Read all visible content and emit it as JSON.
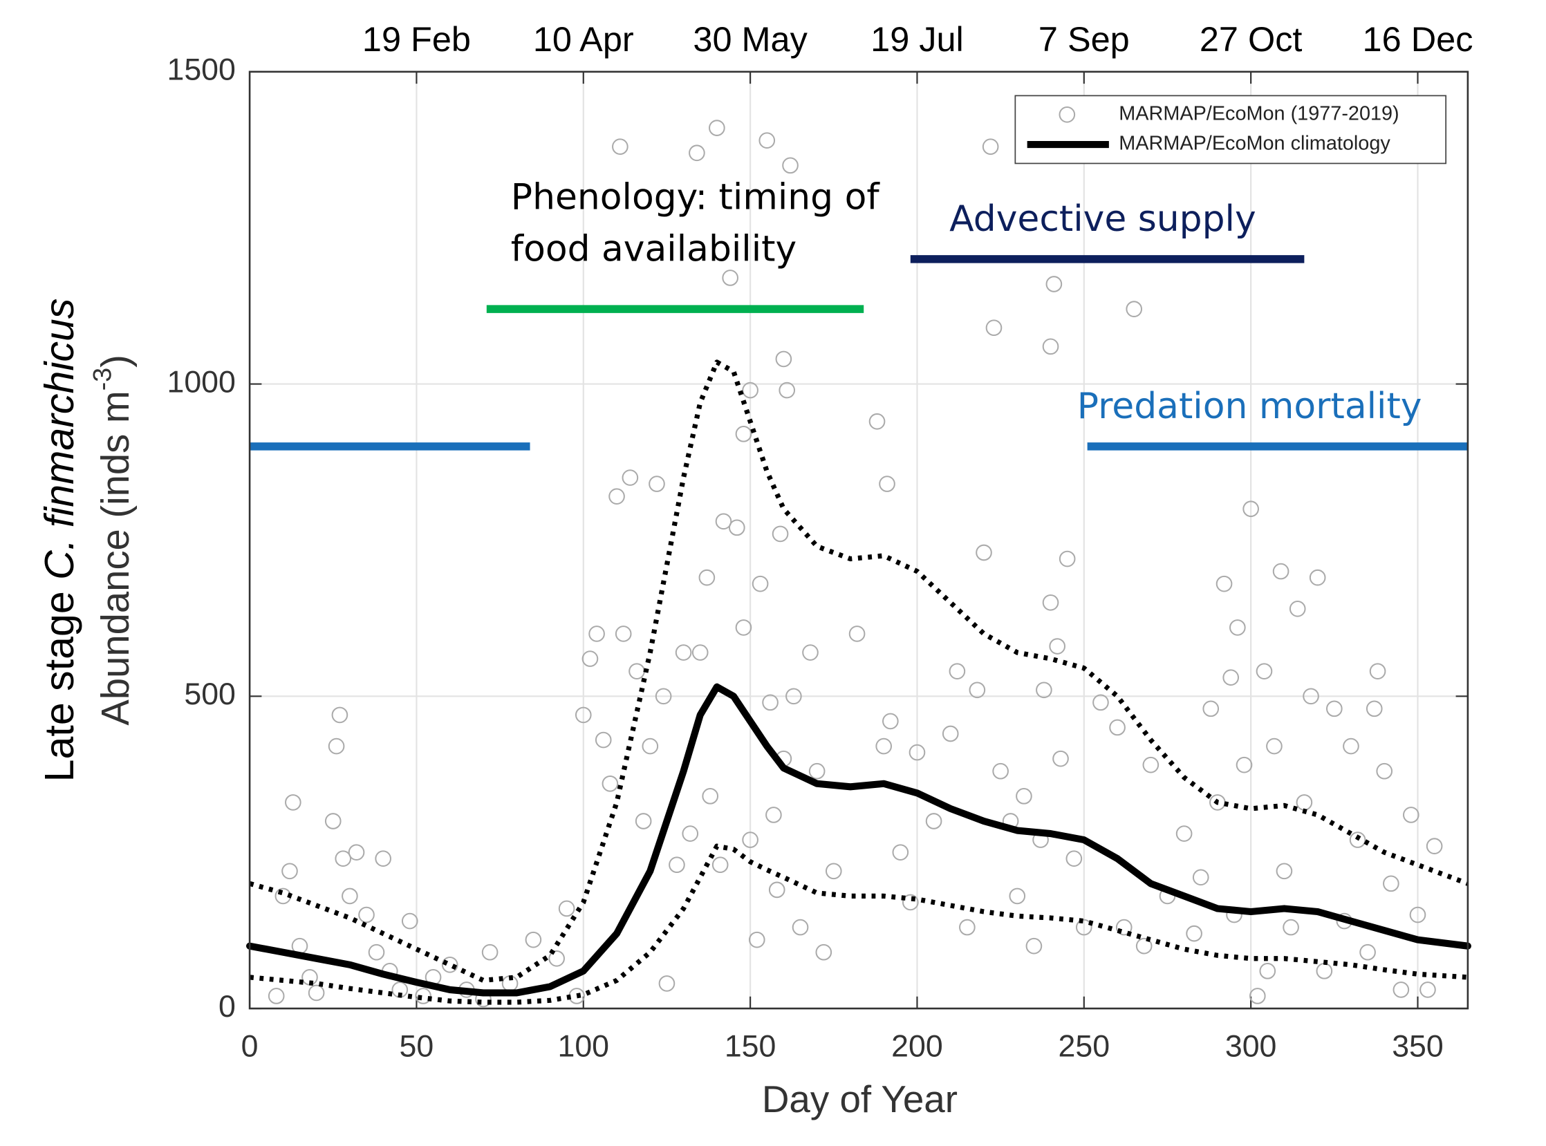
{
  "chart_data": {
    "type": "scatter",
    "xlabel": "Day of Year",
    "ylabel_lines": [
      [
        "Late stage ",
        "C. finmarchicus"
      ],
      [
        "Abundance (inds m",
        "-3",
        ")"
      ]
    ],
    "xlim": [
      0,
      365
    ],
    "ylim": [
      0,
      1500
    ],
    "xticks": [
      0,
      50,
      100,
      150,
      200,
      250,
      300,
      350
    ],
    "yticks": [
      0,
      500,
      1000,
      1500
    ],
    "x2ticks": [
      {
        "value": 50,
        "label": "19 Feb"
      },
      {
        "value": 100,
        "label": "10 Apr"
      },
      {
        "value": 150,
        "label": "30 May"
      },
      {
        "value": 200,
        "label": "19 Jul"
      },
      {
        "value": 250,
        "label": "7 Sep"
      },
      {
        "value": 300,
        "label": "27 Oct"
      },
      {
        "value": 350,
        "label": "16 Dec"
      }
    ],
    "grid": true,
    "legend": "upper right",
    "series": [
      {
        "name": "MARMAP/EcoMon (1977-2019)",
        "color": "#aaaaaa",
        "marker": "open-circle",
        "x": [
          8,
          10,
          12,
          13,
          15,
          18,
          20,
          25,
          26,
          27,
          28,
          30,
          32,
          35,
          38,
          40,
          42,
          45,
          48,
          52,
          55,
          60,
          65,
          70,
          72,
          78,
          85,
          92,
          95,
          98,
          100,
          102,
          104,
          106,
          108,
          110,
          111,
          112,
          114,
          116,
          118,
          120,
          122,
          124,
          125,
          128,
          130,
          132,
          134,
          135,
          137,
          138,
          140,
          141,
          142,
          144,
          146,
          148,
          148,
          150,
          150,
          152,
          153,
          155,
          156,
          157,
          158,
          159,
          160,
          160,
          161,
          162,
          163,
          165,
          168,
          170,
          172,
          175,
          182,
          188,
          190,
          191,
          192,
          195,
          198,
          200,
          205,
          210,
          212,
          215,
          218,
          220,
          222,
          223,
          225,
          228,
          230,
          232,
          235,
          237,
          238,
          240,
          240,
          241,
          242,
          243,
          245,
          247,
          250,
          255,
          260,
          262,
          265,
          268,
          270,
          275,
          280,
          283,
          285,
          288,
          290,
          292,
          294,
          295,
          296,
          298,
          300,
          302,
          304,
          305,
          307,
          309,
          310,
          312,
          314,
          316,
          318,
          320,
          322,
          325,
          328,
          330,
          332,
          335,
          337,
          338,
          340,
          342,
          345,
          348,
          350,
          353,
          355
        ],
        "values": [
          20,
          180,
          220,
          330,
          100,
          50,
          25,
          300,
          420,
          470,
          240,
          180,
          250,
          150,
          90,
          240,
          60,
          30,
          140,
          20,
          50,
          70,
          30,
          15,
          90,
          40,
          110,
          80,
          160,
          20,
          470,
          560,
          600,
          430,
          360,
          820,
          1380,
          600,
          850,
          540,
          300,
          420,
          840,
          500,
          40,
          230,
          570,
          280,
          1370,
          570,
          690,
          340,
          1410,
          230,
          780,
          1170,
          770,
          610,
          920,
          990,
          270,
          110,
          680,
          1390,
          490,
          310,
          190,
          760,
          1040,
          400,
          990,
          1350,
          500,
          130,
          570,
          380,
          90,
          220,
          600,
          940,
          420,
          840,
          460,
          250,
          170,
          410,
          300,
          440,
          540,
          130,
          510,
          730,
          1380,
          1090,
          380,
          300,
          180,
          340,
          100,
          270,
          510,
          1060,
          650,
          1160,
          580,
          400,
          720,
          240,
          130,
          490,
          450,
          130,
          1120,
          100,
          390,
          180,
          280,
          120,
          210,
          480,
          330,
          680,
          530,
          150,
          610,
          390,
          800,
          20,
          540,
          60,
          420,
          700,
          220,
          130,
          640,
          330,
          500,
          690,
          60,
          480,
          140,
          420,
          270,
          90,
          480,
          540,
          380,
          200,
          30,
          310,
          150,
          30,
          260
        ]
      },
      {
        "name": "MARMAP/EcoMon climatology",
        "color": "#000000",
        "line_style": "solid",
        "x": [
          0,
          10,
          20,
          30,
          40,
          50,
          60,
          70,
          80,
          90,
          100,
          110,
          120,
          130,
          135,
          140,
          145,
          150,
          155,
          160,
          170,
          180,
          190,
          200,
          210,
          220,
          230,
          240,
          250,
          260,
          270,
          280,
          290,
          300,
          310,
          320,
          330,
          340,
          350,
          365
        ],
        "values": [
          100,
          90,
          80,
          70,
          55,
          42,
          30,
          25,
          25,
          35,
          60,
          120,
          220,
          380,
          470,
          515,
          500,
          460,
          420,
          385,
          360,
          355,
          360,
          345,
          320,
          300,
          285,
          280,
          270,
          240,
          200,
          180,
          160,
          155,
          160,
          155,
          140,
          125,
          110,
          100
        ]
      },
      {
        "color": "#000000",
        "line_style": "dotted",
        "x": [
          0,
          10,
          20,
          30,
          40,
          50,
          60,
          70,
          80,
          90,
          100,
          110,
          120,
          130,
          135,
          140,
          145,
          150,
          155,
          160,
          170,
          180,
          190,
          200,
          210,
          220,
          230,
          240,
          250,
          260,
          270,
          280,
          290,
          300,
          310,
          320,
          330,
          340,
          350,
          365
        ],
        "values": [
          200,
          185,
          165,
          145,
          120,
          95,
          70,
          45,
          50,
          85,
          170,
          330,
          570,
          850,
          970,
          1035,
          1020,
          940,
          860,
          800,
          740,
          720,
          725,
          700,
          650,
          600,
          570,
          560,
          545,
          500,
          430,
          370,
          330,
          320,
          325,
          310,
          280,
          250,
          230,
          200
        ]
      },
      {
        "color": "#000000",
        "line_style": "dotted",
        "x": [
          0,
          10,
          20,
          30,
          40,
          50,
          60,
          70,
          80,
          90,
          100,
          110,
          120,
          130,
          135,
          140,
          145,
          150,
          155,
          160,
          170,
          180,
          190,
          200,
          210,
          220,
          230,
          240,
          250,
          260,
          270,
          280,
          290,
          300,
          310,
          320,
          330,
          340,
          350,
          365
        ],
        "values": [
          50,
          45,
          40,
          32,
          25,
          18,
          12,
          10,
          10,
          13,
          22,
          45,
          90,
          160,
          210,
          260,
          255,
          235,
          222,
          210,
          185,
          180,
          180,
          175,
          165,
          155,
          148,
          145,
          140,
          125,
          110,
          95,
          85,
          80,
          80,
          75,
          70,
          62,
          55,
          50
        ]
      }
    ],
    "annotations": [
      {
        "lines": [
          "Phenology: timing of",
          "food availability"
        ],
        "color": "#000000",
        "bar_color": "#00b050",
        "spans": [
          [
            71,
            184
          ]
        ],
        "y": 1120
      },
      {
        "lines": [
          "Advective supply"
        ],
        "color": "#0d1f5c",
        "bar_color": "#0d1f5c",
        "spans": [
          [
            198,
            316
          ]
        ],
        "y": 1200
      },
      {
        "lines": [
          "Predation mortality"
        ],
        "color": "#1a6fba",
        "bar_color": "#1a6fba",
        "spans": [
          [
            0,
            84
          ],
          [
            251,
            365
          ]
        ],
        "y": 900
      }
    ]
  }
}
